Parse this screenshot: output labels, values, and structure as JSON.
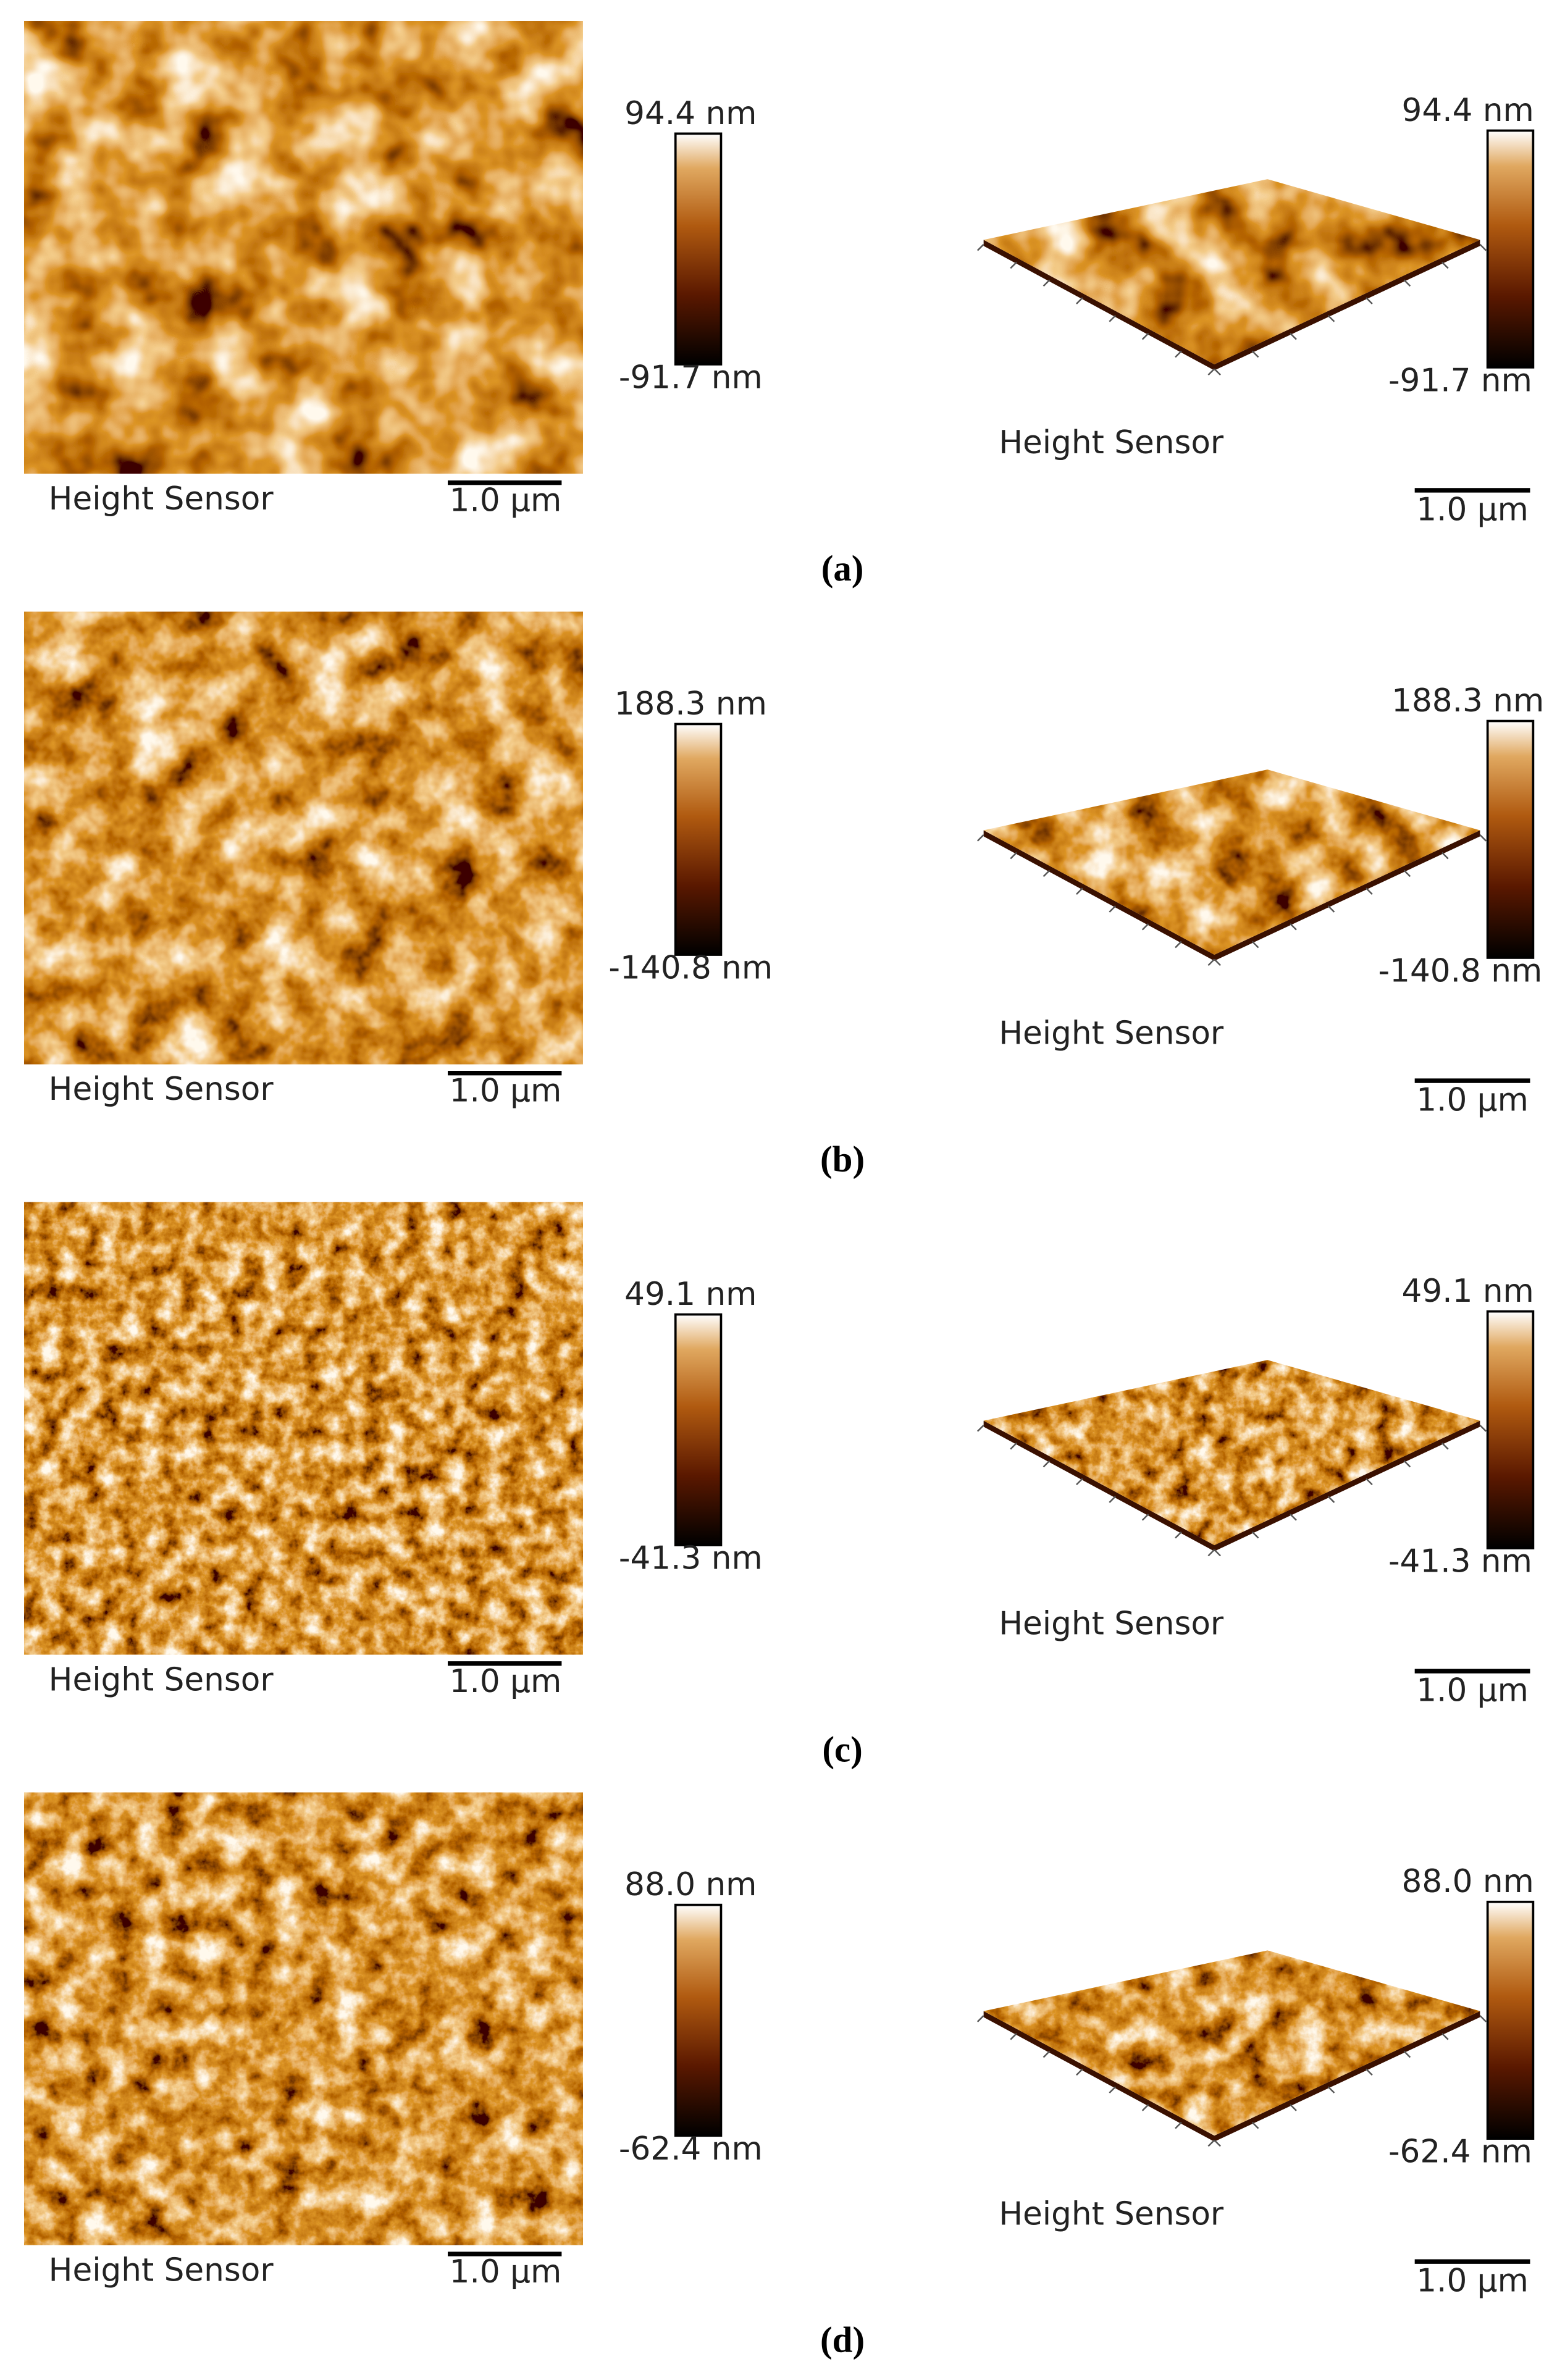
{
  "panels": [
    {
      "caption": "(a)",
      "left": {
        "max_label": "94.4 nm",
        "min_label": "-91.7 nm",
        "sensor_label": "Height Sensor",
        "scale_label": "1.0 µm"
      },
      "right": {
        "max_label": "94.4 nm",
        "min_label": "-91.7 nm",
        "sensor_label": "Height Sensor",
        "scale_label": "1.0 µm"
      }
    },
    {
      "caption": "(b)",
      "left": {
        "max_label": "188.3 nm",
        "min_label": "-140.8 nm",
        "sensor_label": "Height Sensor",
        "scale_label": "1.0 µm"
      },
      "right": {
        "max_label": "188.3 nm",
        "min_label": "-140.8 nm",
        "sensor_label": "Height Sensor",
        "scale_label": "1.0 µm"
      }
    },
    {
      "caption": "(c)",
      "left": {
        "max_label": "49.1 nm",
        "min_label": "-41.3 nm",
        "sensor_label": "Height Sensor",
        "scale_label": "1.0 µm"
      },
      "right": {
        "max_label": "49.1 nm",
        "min_label": "-41.3 nm",
        "sensor_label": "Height Sensor",
        "scale_label": "1.0 µm"
      }
    },
    {
      "caption": "(d)",
      "left": {
        "max_label": "88.0 nm",
        "min_label": "-62.4 nm",
        "sensor_label": "Height Sensor",
        "scale_label": "1.0 µm"
      },
      "right": {
        "max_label": "88.0 nm",
        "min_label": "-62.4 nm",
        "sensor_label": "Height Sensor",
        "scale_label": "1.0 µm"
      }
    }
  ]
}
